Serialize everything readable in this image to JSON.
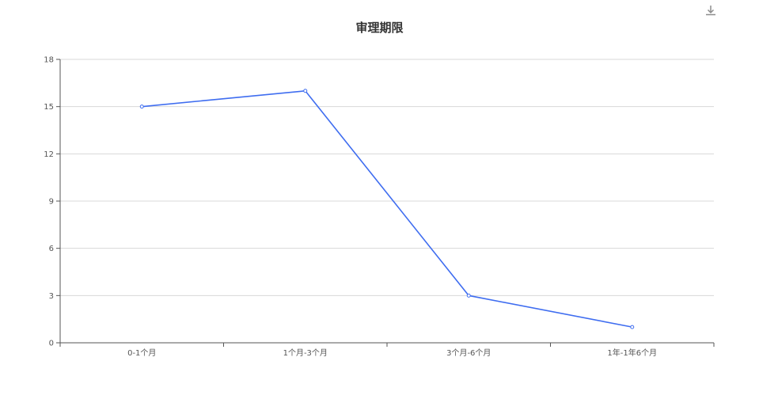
{
  "toolbar": {
    "icon": "download-icon"
  },
  "chart_data": {
    "type": "line",
    "title": "审理期限",
    "categories": [
      "0-1个月",
      "1个月-3个月",
      "3个月-6个月",
      "1年-1年6个月"
    ],
    "series": [
      {
        "values": [
          15,
          16,
          3,
          1
        ],
        "color": "#3f6df0"
      }
    ],
    "ylim": [
      0,
      18
    ],
    "yticks": [
      0,
      3,
      6,
      9,
      12,
      15,
      18
    ],
    "grid": true,
    "legend": "none",
    "colors": {
      "axis": "#555555",
      "grid": "#d8d8d8",
      "line": "#3f6df0"
    }
  }
}
